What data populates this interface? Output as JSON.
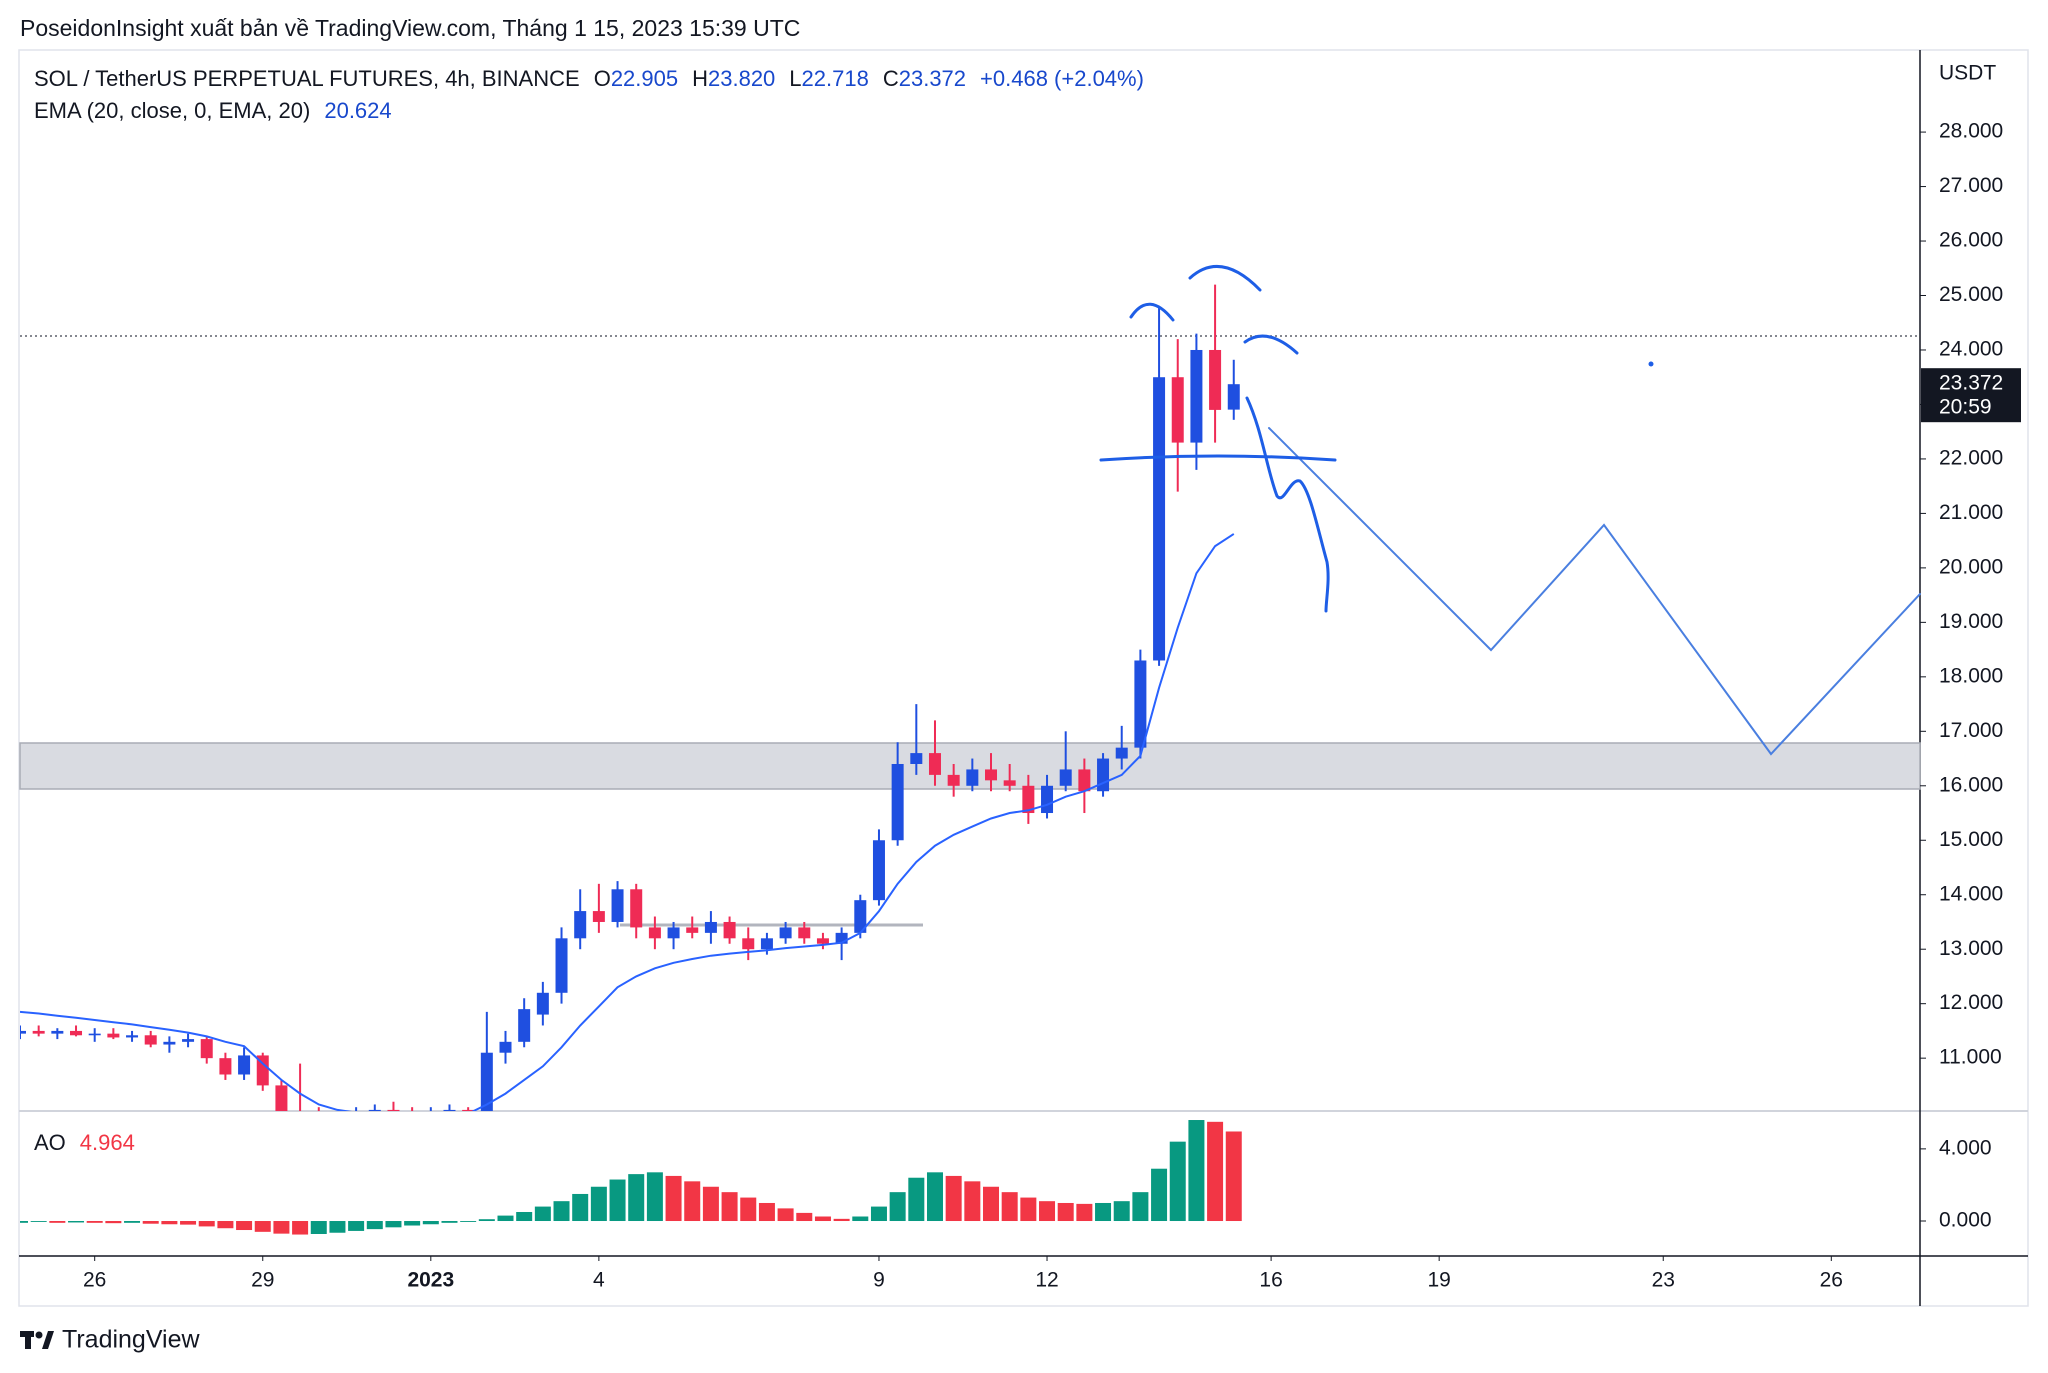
{
  "header": {
    "publisher_line": "PoseidonInsight xuất bản về TradingView.com, Tháng 1 15, 2023 15:39 UTC"
  },
  "chart_data": {
    "type": "candlestick",
    "symbol": "SOL / TetherUS PERPETUAL FUTURES, 4h, BINANCE",
    "legend_labels": {
      "open": "O",
      "high": "H",
      "low": "L",
      "close": "C"
    },
    "value_labels": {
      "open": "22.905",
      "high": "23.820",
      "low": "22.718",
      "close": "23.372"
    },
    "change_label": "+0.468 (+2.04%)",
    "currency": "USDT",
    "countdown": "20:59",
    "up_color": "#1f4fe0",
    "down_color": "#ef2b55",
    "x": [
      "2022-12-24 16:00",
      "2022-12-25 00:00",
      "2022-12-25 08:00",
      "2022-12-25 16:00",
      "2022-12-26 00:00",
      "2022-12-26 08:00",
      "2022-12-26 16:00",
      "2022-12-27 00:00",
      "2022-12-27 08:00",
      "2022-12-27 16:00",
      "2022-12-28 00:00",
      "2022-12-28 08:00",
      "2022-12-28 16:00",
      "2022-12-29 00:00",
      "2022-12-29 08:00",
      "2022-12-29 16:00",
      "2022-12-30 00:00",
      "2022-12-30 08:00",
      "2022-12-30 16:00",
      "2022-12-31 00:00",
      "2022-12-31 08:00",
      "2022-12-31 16:00",
      "2023-01-01 00:00",
      "2023-01-01 08:00",
      "2023-01-01 16:00",
      "2023-01-02 00:00",
      "2023-01-02 08:00",
      "2023-01-02 16:00",
      "2023-01-03 00:00",
      "2023-01-03 08:00",
      "2023-01-03 16:00",
      "2023-01-04 00:00",
      "2023-01-04 08:00",
      "2023-01-04 16:00",
      "2023-01-05 00:00",
      "2023-01-05 08:00",
      "2023-01-05 16:00",
      "2023-01-06 00:00",
      "2023-01-06 08:00",
      "2023-01-06 16:00",
      "2023-01-07 00:00",
      "2023-01-07 08:00",
      "2023-01-07 16:00",
      "2023-01-08 00:00",
      "2023-01-08 08:00",
      "2023-01-08 16:00",
      "2023-01-09 00:00",
      "2023-01-09 08:00",
      "2023-01-09 16:00",
      "2023-01-10 00:00",
      "2023-01-10 08:00",
      "2023-01-10 16:00",
      "2023-01-11 00:00",
      "2023-01-11 08:00",
      "2023-01-11 16:00",
      "2023-01-12 00:00",
      "2023-01-12 08:00",
      "2023-01-12 16:00",
      "2023-01-13 00:00",
      "2023-01-13 08:00",
      "2023-01-13 16:00",
      "2023-01-14 00:00",
      "2023-01-14 08:00",
      "2023-01-14 16:00",
      "2023-01-15 00:00",
      "2023-01-15 08:00"
    ],
    "open": [
      11.45,
      11.5,
      11.45,
      11.5,
      11.42,
      11.45,
      11.38,
      11.42,
      11.25,
      11.3,
      11.35,
      11.0,
      10.7,
      11.05,
      10.5,
      10.0,
      9.95,
      9.85,
      9.9,
      10.0,
      10.05,
      10.0,
      9.95,
      10.0,
      10.05,
      9.95,
      11.1,
      11.3,
      11.8,
      12.2,
      13.2,
      13.7,
      13.5,
      14.1,
      13.4,
      13.2,
      13.4,
      13.3,
      13.5,
      13.2,
      13.0,
      13.2,
      13.4,
      13.2,
      13.1,
      13.3,
      13.9,
      15.0,
      16.4,
      16.6,
      16.2,
      16.0,
      16.3,
      16.1,
      16.0,
      15.5,
      16.0,
      16.3,
      15.9,
      16.5,
      16.7,
      18.3,
      23.5,
      22.3,
      24.0,
      22.905
    ],
    "high": [
      11.6,
      11.6,
      11.55,
      11.6,
      11.55,
      11.55,
      11.5,
      11.5,
      11.4,
      11.45,
      11.4,
      11.1,
      11.2,
      11.1,
      10.6,
      10.9,
      10.1,
      10.0,
      10.1,
      10.15,
      10.2,
      10.1,
      10.1,
      10.15,
      10.1,
      11.85,
      11.5,
      12.1,
      12.4,
      13.4,
      14.1,
      14.2,
      14.25,
      14.2,
      13.6,
      13.5,
      13.6,
      13.7,
      13.6,
      13.4,
      13.3,
      13.5,
      13.5,
      13.3,
      13.4,
      14.0,
      15.2,
      16.8,
      17.5,
      17.2,
      16.4,
      16.5,
      16.6,
      16.4,
      16.2,
      16.2,
      17.0,
      16.5,
      16.6,
      17.1,
      18.5,
      24.8,
      24.2,
      24.3,
      25.2,
      23.82
    ],
    "low": [
      11.35,
      11.4,
      11.35,
      11.4,
      11.3,
      11.35,
      11.3,
      11.2,
      11.1,
      11.2,
      10.9,
      10.6,
      10.6,
      10.4,
      9.9,
      9.8,
      9.7,
      9.7,
      9.7,
      9.85,
      9.9,
      9.85,
      9.8,
      9.85,
      9.85,
      9.9,
      10.9,
      11.2,
      11.6,
      12.0,
      13.0,
      13.3,
      13.4,
      13.2,
      13.0,
      13.0,
      13.2,
      13.1,
      13.1,
      12.8,
      12.9,
      13.1,
      13.1,
      13.0,
      12.8,
      13.2,
      13.8,
      14.9,
      16.2,
      16.0,
      15.8,
      15.9,
      15.9,
      15.9,
      15.3,
      15.4,
      15.9,
      15.5,
      15.8,
      16.3,
      16.5,
      18.2,
      21.4,
      21.8,
      22.3,
      22.718
    ],
    "close": [
      11.5,
      11.45,
      11.5,
      11.42,
      11.45,
      11.38,
      11.42,
      11.25,
      11.3,
      11.35,
      11.0,
      10.7,
      11.05,
      10.5,
      10.0,
      9.95,
      9.85,
      9.9,
      10.0,
      10.05,
      10.0,
      9.95,
      10.0,
      10.05,
      9.95,
      11.1,
      11.3,
      11.9,
      12.2,
      13.2,
      13.7,
      13.5,
      14.1,
      13.4,
      13.2,
      13.4,
      13.3,
      13.5,
      13.2,
      13.0,
      13.2,
      13.4,
      13.2,
      13.1,
      13.3,
      13.9,
      15.0,
      16.4,
      16.6,
      16.2,
      16.0,
      16.3,
      16.1,
      16.0,
      15.5,
      16.0,
      16.3,
      15.9,
      16.5,
      16.7,
      18.3,
      23.5,
      22.3,
      24.0,
      22.9,
      23.372
    ],
    "ema": {
      "name": "EMA (20, close, 0, EMA, 20)",
      "color": "#2962ff",
      "values": [
        11.85,
        11.82,
        11.78,
        11.74,
        11.7,
        11.66,
        11.62,
        11.57,
        11.52,
        11.47,
        11.4,
        11.3,
        11.22,
        10.9,
        10.6,
        10.35,
        10.15,
        10.05,
        10.0,
        10.0,
        10.0,
        10.0,
        10.0,
        10.0,
        9.98,
        10.15,
        10.35,
        10.6,
        10.85,
        11.2,
        11.6,
        11.95,
        12.3,
        12.5,
        12.65,
        12.75,
        12.82,
        12.88,
        12.92,
        12.95,
        12.98,
        13.02,
        13.05,
        13.08,
        13.12,
        13.3,
        13.7,
        14.2,
        14.6,
        14.9,
        15.1,
        15.25,
        15.4,
        15.5,
        15.55,
        15.65,
        15.8,
        15.9,
        16.05,
        16.2,
        16.55,
        17.8,
        18.9,
        19.9,
        20.4,
        20.624
      ]
    },
    "ao": {
      "name": "AO",
      "up_color": "#089981",
      "down_color": "#f23645",
      "values": [
        -0.1,
        -0.05,
        -0.1,
        -0.08,
        -0.1,
        -0.12,
        -0.1,
        -0.15,
        -0.18,
        -0.2,
        -0.3,
        -0.4,
        -0.5,
        -0.6,
        -0.7,
        -0.75,
        -0.72,
        -0.65,
        -0.55,
        -0.45,
        -0.35,
        -0.25,
        -0.18,
        -0.1,
        -0.05,
        0.1,
        0.3,
        0.5,
        0.8,
        1.1,
        1.5,
        1.9,
        2.3,
        2.6,
        2.7,
        2.5,
        2.2,
        1.9,
        1.6,
        1.3,
        1.0,
        0.7,
        0.45,
        0.25,
        0.12,
        0.25,
        0.8,
        1.6,
        2.4,
        2.7,
        2.5,
        2.2,
        1.9,
        1.6,
        1.3,
        1.1,
        1.0,
        0.95,
        1.0,
        1.1,
        1.6,
        2.9,
        4.4,
        5.6,
        5.5,
        4.964
      ],
      "ylim": [
        -1.94,
        6.1
      ],
      "yticks": [
        {
          "value": 0,
          "label": "0.000"
        },
        {
          "value": 4,
          "label": "4.000"
        }
      ]
    },
    "xlim": [
      "2022-12-24 16:00",
      "2023-01-27 14:00"
    ],
    "xticks": [
      {
        "value": "2022-12-26",
        "label": "26"
      },
      {
        "value": "2022-12-29",
        "label": "29"
      },
      {
        "value": "2023-01-01",
        "label": "2023"
      },
      {
        "value": "2023-01-04",
        "label": "4"
      },
      {
        "value": "2023-01-09",
        "label": "9"
      },
      {
        "value": "2023-01-12",
        "label": "12"
      },
      {
        "value": "2023-01-16",
        "label": "16"
      },
      {
        "value": "2023-01-19",
        "label": "19"
      },
      {
        "value": "2023-01-23",
        "label": "23"
      },
      {
        "value": "2023-01-26",
        "label": "26"
      }
    ],
    "ylim": [
      10.03,
      29.47
    ],
    "yticks": [
      {
        "value": 11,
        "label": "11.000"
      },
      {
        "value": 12,
        "label": "12.000"
      },
      {
        "value": 13,
        "label": "13.000"
      },
      {
        "value": 14,
        "label": "14.000"
      },
      {
        "value": 15,
        "label": "15.000"
      },
      {
        "value": 16,
        "label": "16.000"
      },
      {
        "value": 17,
        "label": "17.000"
      },
      {
        "value": 18,
        "label": "18.000"
      },
      {
        "value": 19,
        "label": "19.000"
      },
      {
        "value": 20,
        "label": "20.000"
      },
      {
        "value": 21,
        "label": "21.000"
      },
      {
        "value": 22,
        "label": "22.000"
      },
      {
        "value": 23,
        "label": "23.000"
      },
      {
        "value": 24,
        "label": "24.000"
      },
      {
        "value": 25,
        "label": "25.000"
      },
      {
        "value": 26,
        "label": "26.000"
      },
      {
        "value": 27,
        "label": "27.000"
      },
      {
        "value": 28,
        "label": "28.000"
      }
    ]
  },
  "footer": {
    "brand": "TradingView"
  }
}
